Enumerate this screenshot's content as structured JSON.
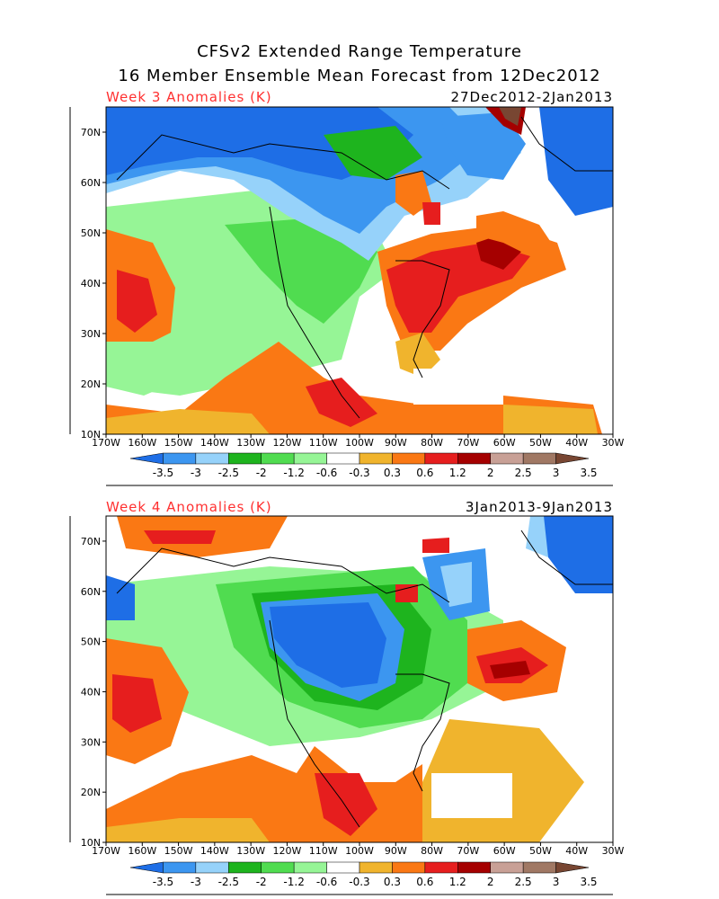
{
  "title": {
    "line1": "CFSv2 Extended Range Temperature",
    "line2": "16 Member Ensemble Mean Forecast from 12Dec2012"
  },
  "panels": [
    {
      "week_label": "Week 3 Anomalies (K)",
      "date_range": "27Dec2012-2Jan2013"
    },
    {
      "week_label": "Week 4 Anomalies (K)",
      "date_range": "3Jan2013-9Jan2013"
    }
  ],
  "map": {
    "lat_labels": [
      "10N",
      "20N",
      "30N",
      "40N",
      "50N",
      "60N",
      "70N"
    ],
    "lon_labels": [
      "170W",
      "160W",
      "150W",
      "140W",
      "130W",
      "120W",
      "110W",
      "100W",
      "90W",
      "80W",
      "70W",
      "60W",
      "50W",
      "40W",
      "30W"
    ],
    "lat_range": [
      10,
      75
    ],
    "lon_range": [
      -170,
      -30
    ]
  },
  "colorbar": {
    "labels": [
      "-3.5",
      "-3",
      "-2.5",
      "-2",
      "-1.2",
      "-0.6",
      "-0.3",
      "0.3",
      "0.6",
      "1.2",
      "2",
      "2.5",
      "3",
      "3.5"
    ],
    "colors": [
      "#1e6ee6",
      "#3c96f0",
      "#96d2fa",
      "#1eb41e",
      "#50dc50",
      "#96f596",
      "#ffffff",
      "#f0b42d",
      "#fa7814",
      "#e61e1e",
      "#a50000",
      "#c8a096",
      "#a07864",
      "#784632"
    ]
  },
  "regions": {
    "week3": [
      {
        "name": "alaska-cold",
        "cat": "cold-strong"
      },
      {
        "name": "hudson-cold",
        "cat": "cold-strong"
      },
      {
        "name": "eastern-us-warm",
        "cat": "warm-strong"
      },
      {
        "name": "greenland-very-warm",
        "cat": "warm-extreme"
      },
      {
        "name": "west-pacific-warm",
        "cat": "warm"
      },
      {
        "name": "mexico-warm",
        "cat": "warm"
      }
    ],
    "week4": [
      {
        "name": "central-canada-cold",
        "cat": "cold-strong"
      },
      {
        "name": "greenland-cold",
        "cat": "cold-strong"
      },
      {
        "name": "atlantic-warm",
        "cat": "warm-strong"
      },
      {
        "name": "west-pacific-warm",
        "cat": "warm"
      },
      {
        "name": "mexico-warm",
        "cat": "warm"
      }
    ]
  }
}
